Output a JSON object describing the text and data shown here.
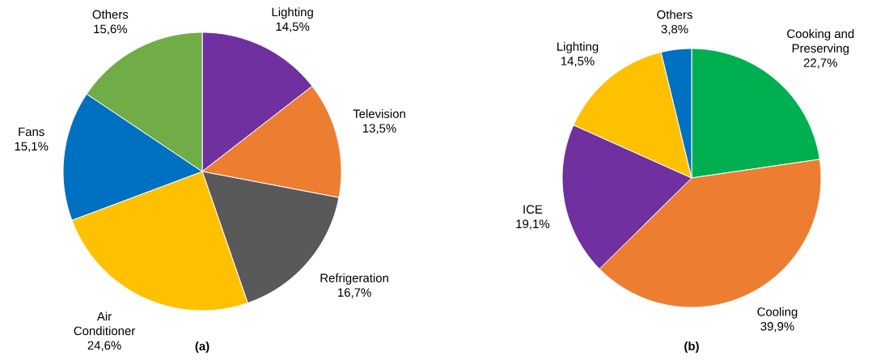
{
  "chart_data": [
    {
      "type": "pie",
      "title": "(a)",
      "categories": [
        "Lighting",
        "Television",
        "Refrigeration",
        "Air Conditioner",
        "Fans",
        "Others"
      ],
      "values": [
        14.5,
        13.5,
        16.7,
        24.6,
        15.1,
        15.6
      ],
      "value_labels": [
        "14,5%",
        "13,5%",
        "16,7%",
        "24,6%",
        "15,1%",
        "15,6%"
      ],
      "colors": [
        "#7030a0",
        "#ed7d31",
        "#595959",
        "#ffc000",
        "#0070c0",
        "#70ad47"
      ]
    },
    {
      "type": "pie",
      "title": "(b)",
      "categories": [
        "Cooking and Preserving",
        "Cooling",
        "ICE",
        "Lighting",
        "Others"
      ],
      "values": [
        22.7,
        39.9,
        19.1,
        14.5,
        3.8
      ],
      "value_labels": [
        "22,7%",
        "39,9%",
        "19,1%",
        "14,5%",
        "3,8%"
      ],
      "colors": [
        "#00b050",
        "#ed7d31",
        "#7030a0",
        "#ffc000",
        "#0070c0"
      ]
    }
  ]
}
